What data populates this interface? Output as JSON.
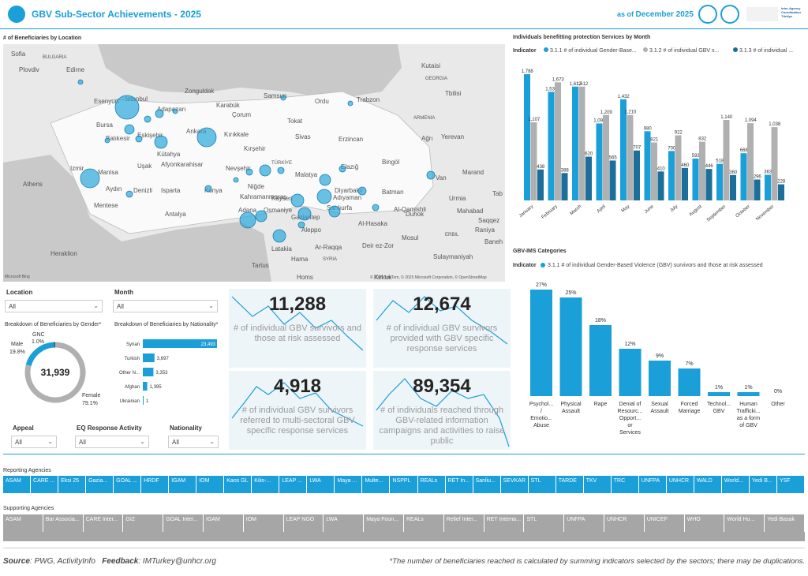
{
  "header": {
    "title": "GBV Sub-Sector Achievements - 2025",
    "as_of_prefix": "as of",
    "as_of_date": "December 2025",
    "logo_text": "Inter-Agency Coordination Türkiye"
  },
  "map": {
    "title": "# of Beneficiaries by Location",
    "attribution": "© 2025 TomTom, © 2025 Microsoft Corporation, © OpenStreetMap",
    "bing": "Microsoft Bing",
    "labels": [
      {
        "t": "Sofia"
      },
      {
        "t": "BULGARIA"
      },
      {
        "t": "Plovdiv"
      },
      {
        "t": "Edirne"
      },
      {
        "t": "Kutaisi"
      },
      {
        "t": "GEORGIA"
      },
      {
        "t": "Tbilisi"
      },
      {
        "t": "Esenyurt"
      },
      {
        "t": "Istanbul"
      },
      {
        "t": "Zonguldak"
      },
      {
        "t": "Samsun"
      },
      {
        "t": "Ordu"
      },
      {
        "t": "Trabzon"
      },
      {
        "t": "ARMENIA"
      },
      {
        "t": "Adapazarı"
      },
      {
        "t": "Karabük"
      },
      {
        "t": "Bursa"
      },
      {
        "t": "Çorum"
      },
      {
        "t": "Tokat"
      },
      {
        "t": "Yerevan"
      },
      {
        "t": "Balıkesir"
      },
      {
        "t": "Eskişehir"
      },
      {
        "t": "Ankara"
      },
      {
        "t": "Kırıkkale"
      },
      {
        "t": "Sivas"
      },
      {
        "t": "Erzincan"
      },
      {
        "t": "Ağrı"
      },
      {
        "t": "Kütahya"
      },
      {
        "t": "Kırşehir"
      },
      {
        "t": "Afyonkarahisar"
      },
      {
        "t": "TÜRKİYE"
      },
      {
        "t": "Bingöl"
      },
      {
        "t": "Izmir"
      },
      {
        "t": "Manisa"
      },
      {
        "t": "Uşak"
      },
      {
        "t": "Nevşehir"
      },
      {
        "t": "Malatya"
      },
      {
        "t": "Elazığ"
      },
      {
        "t": "Van"
      },
      {
        "t": "Marand"
      },
      {
        "t": "Athens"
      },
      {
        "t": "Aydın"
      },
      {
        "t": "Denizli"
      },
      {
        "t": "Isparta"
      },
      {
        "t": "Konya"
      },
      {
        "t": "Niğde"
      },
      {
        "t": "Kayseri"
      },
      {
        "t": "Diyarbakır"
      },
      {
        "t": "Batman"
      },
      {
        "t": "Tab"
      },
      {
        "t": "Mentese"
      },
      {
        "t": "Kahramanmaraş"
      },
      {
        "t": "Adıyaman"
      },
      {
        "t": "Urmia"
      },
      {
        "t": "Antalya"
      },
      {
        "t": "Adana"
      },
      {
        "t": "Osmaniye"
      },
      {
        "t": "Gaziantep"
      },
      {
        "t": "Şanlıurfa"
      },
      {
        "t": "Al-Qamishli"
      },
      {
        "t": "Mahabad"
      },
      {
        "t": "Duhok"
      },
      {
        "t": "Aleppo"
      },
      {
        "t": "Al-Hasaka"
      },
      {
        "t": "Saqqez"
      },
      {
        "t": "Raniya"
      },
      {
        "t": "Mosul"
      },
      {
        "t": "ERBIL"
      },
      {
        "t": "Baneh"
      },
      {
        "t": "Latakia"
      },
      {
        "t": "Ar-Raqqa"
      },
      {
        "t": "Deir ez-Zor"
      },
      {
        "t": "Sulaymaniyah"
      },
      {
        "t": "Heraklion"
      },
      {
        "t": "Hama"
      },
      {
        "t": "SYRIA"
      },
      {
        "t": "Tartus"
      },
      {
        "t": "Homs"
      },
      {
        "t": "Kirkuk"
      }
    ]
  },
  "filters": {
    "location_label": "Location",
    "location_value": "All",
    "month_label": "Month",
    "month_value": "All",
    "appeal_label": "Appeal",
    "appeal_value": "All",
    "eq_label": "EQ Response Activity",
    "eq_value": "All",
    "nationality_label": "Nationality",
    "nationality_value": "All"
  },
  "gender": {
    "title": "Breakdown of Beneficiaries by Gender*",
    "total": "31,939",
    "segments": [
      {
        "name": "Male",
        "pct": "19.8%",
        "value": 19.8,
        "color": "#1a9fd8"
      },
      {
        "name": "GNC",
        "pct": "1.0%",
        "value": 1.0,
        "color": "#1b6f9a"
      },
      {
        "name": "Female",
        "pct": "79.1%",
        "value": 79.1,
        "color": "#b0b0b0"
      }
    ]
  },
  "nationality": {
    "title": "Breakdown of Beneficiaries by Nationality*",
    "rows": [
      {
        "name": "Syrian",
        "value": 23493,
        "label": "23,493"
      },
      {
        "name": "Turkish",
        "value": 3697,
        "label": "3,697"
      },
      {
        "name": "Other N...",
        "value": 3353,
        "label": "3,353"
      },
      {
        "name": "Afghan",
        "value": 1395,
        "label": "1,395"
      },
      {
        "name": "Ukrainian",
        "value": 1,
        "label": "1"
      }
    ]
  },
  "cards": [
    {
      "value": "11,288",
      "label": "# of individual GBV survivors and those at risk assessed"
    },
    {
      "value": "12,674",
      "label": "# of individual GBV survivors provided with GBV specific response services"
    },
    {
      "value": "4,918",
      "label": "# of individual GBV survivors referred to multi-sectoral GBV specific response services"
    },
    {
      "value": "89,354",
      "label": "# of individuals reached through GBV-related information campaigns and activities to raise public"
    }
  ],
  "monthly": {
    "title": "Individuals benefitting protection Services by Month",
    "indicator_label": "Indicator",
    "legend": [
      {
        "name": "3.1.1 # of individual Gender-Base...",
        "color": "#1a9fd8"
      },
      {
        "name": "3.1.2 # of individual GBV s...",
        "color": "#b0b0b0"
      },
      {
        "name": "3.1.3 # of individual ...",
        "color": "#1b6f9a"
      }
    ]
  },
  "gbvims": {
    "title": "GBV-IMS Categories",
    "indicator_label": "Indicator",
    "legend": "3.1.1 # of individual Gender-Based Violence (GBV) survivors and those at risk assessed"
  },
  "chart_data": [
    {
      "type": "bar",
      "categories": [
        "January",
        "February",
        "March",
        "April",
        "May",
        "June",
        "July",
        "August",
        "September",
        "October",
        "November"
      ],
      "series": [
        {
          "name": "3.1.1 # of individual Gender-Base...",
          "values": [
            1788,
            1538,
            1612,
            1090,
            1432,
            980,
            700,
            593,
            518,
            668,
            363
          ]
        },
        {
          "name": "3.1.2 # of individual GBV s...",
          "values": [
            1107,
            1673,
            1612,
            1209,
            1210,
            821,
            922,
            832,
            1140,
            1094,
            1038
          ]
        },
        {
          "name": "3.1.3 # of individual ...",
          "values": [
            438,
            388,
            620,
            565,
            707,
            410,
            460,
            446,
            360,
            296,
            228
          ]
        }
      ],
      "labels": [
        [
          "1,788",
          "1,538",
          "1,612",
          "1,090",
          "1,432",
          "980",
          "700",
          "593",
          "518",
          "668",
          "363"
        ],
        [
          "1,107",
          "1,673",
          "1,612",
          "1,209",
          "1,210",
          "821",
          "922",
          "832",
          "1,140",
          "1,094",
          "1,038"
        ],
        [
          "438",
          "388",
          "620",
          "565",
          "707",
          "410",
          "460",
          "446",
          "360",
          "296",
          "228"
        ]
      ],
      "ylim": [
        0,
        1900
      ]
    },
    {
      "type": "bar",
      "categories": [
        "Psychol... / Emotio... Abuse",
        "Physical Assault",
        "Rape",
        "Denial of Resourc... Opport... or Services",
        "Sexual Assault",
        "Forced Marriage",
        "Technol... GBV",
        "Human Trafficki... as a form of GBV",
        "Other"
      ],
      "values": [
        27,
        25,
        18,
        12,
        9,
        7,
        1,
        1,
        0
      ],
      "labels": [
        "27%",
        "25%",
        "18%",
        "12%",
        "9%",
        "7%",
        "1%",
        "1%",
        "0%"
      ],
      "ylim": [
        0,
        28
      ]
    }
  ],
  "reporting": {
    "title": "Reporting Agencies",
    "items": [
      "ASAM",
      "CARE ...",
      "Eksi 25",
      "Gazia...",
      "GOAL ...",
      "HRDF",
      "IGAM",
      "IOM",
      "Kaos GL",
      "Kilis-...",
      "LEAP ...",
      "LWA",
      "Maya ...",
      "Multe...",
      "NSPPL",
      "REALs",
      "RET In...",
      "Sanliu...",
      "SEVKAR",
      "STL",
      "TARDE",
      "TKV",
      "TRC",
      "UNFPA",
      "UNHCR",
      "WALD",
      "World...",
      "Yedi B...",
      "YSF"
    ]
  },
  "supporting": {
    "title": "Supporting Agencies",
    "items": [
      "ASAM",
      "Bar Associa...",
      "CARE Inter...",
      "GIZ",
      "GOAL Inter...",
      "IGAM",
      "IOM",
      "LEAP NGO",
      "LWA",
      "Maya Foun...",
      "REALs",
      "Relief Inter...",
      "RET Interna...",
      "STL",
      "UNFPA",
      "UNHCR",
      "UNICEF",
      "WHO",
      "World Hu...",
      "Yedi Basak"
    ]
  },
  "footer": {
    "source_label": "Source",
    "source": ": PWG, ActivityInfo",
    "feedback_label": "Feedback",
    "feedback": ": IMTurkey@unhcr.org",
    "note": "*The number of beneficiaries reached is calculated by summing indicators selected by the sectors; there may be duplications."
  }
}
